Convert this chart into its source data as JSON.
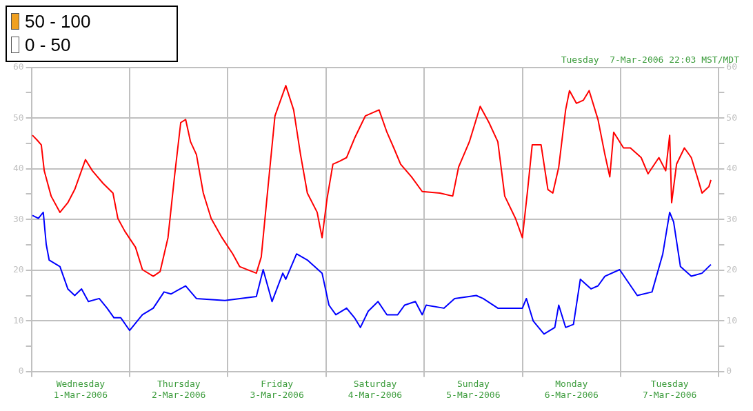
{
  "chart_data": {
    "type": "line",
    "title": "Tuesday  7-Mar-2006 22:03 MST/MDT",
    "annotations": [
      "50 - 100",
      "0 - 50"
    ],
    "xlim": [
      "2006-03-01",
      "2006-03-08"
    ],
    "xticks": [
      {
        "value": "2006-03-01",
        "label": null
      },
      {
        "value": "2006-03-01T12:00",
        "label": "Wednesday\n1-Mar-2006"
      },
      {
        "value": "2006-03-02",
        "label": null
      },
      {
        "value": "2006-03-02T12:00",
        "label": "Thursday\n2-Mar-2006"
      },
      {
        "value": "2006-03-03",
        "label": null
      },
      {
        "value": "2006-03-03T12:00",
        "label": "Friday\n3-Mar-2006"
      },
      {
        "value": "2006-03-04",
        "label": null
      },
      {
        "value": "2006-03-04T12:00",
        "label": "Saturday\n4-Mar-2006"
      },
      {
        "value": "2006-03-05",
        "label": null
      },
      {
        "value": "2006-03-05T12:00",
        "label": "Sunday\n5-Mar-2006"
      },
      {
        "value": "2006-03-06",
        "label": null
      },
      {
        "value": "2006-03-06T12:00",
        "label": "Monday\n6-Mar-2006"
      },
      {
        "value": "2006-03-07",
        "label": null
      },
      {
        "value": "2006-03-07T12:00",
        "label": "Tuesday\n7-Mar-2006"
      },
      {
        "value": "2006-03-08",
        "label": null
      }
    ],
    "ylim": [
      0,
      60
    ],
    "yticks": [
      0,
      {
        "value": 5,
        "label": null
      },
      10,
      {
        "value": 15,
        "label": null
      },
      20,
      {
        "value": 25,
        "label": null
      },
      30,
      {
        "value": 35,
        "label": null
      },
      40,
      {
        "value": 45,
        "label": null
      },
      50,
      {
        "value": 55,
        "label": null
      },
      60
    ],
    "y2lim": [
      0,
      60
    ],
    "y2ticks": [
      0,
      {
        "value": 5,
        "label": null
      },
      10,
      {
        "value": 15,
        "label": null
      },
      20,
      {
        "value": 25,
        "label": null
      },
      30,
      {
        "value": 35,
        "label": null
      },
      40,
      {
        "value": 45,
        "label": null
      },
      50,
      {
        "value": 55,
        "label": null
      },
      60
    ],
    "grid": true,
    "legend": false,
    "marker": "none",
    "line_style": "solid",
    "series": [
      {
        "color": "#ff0000",
        "x": [
          "2006-03-01T00:14",
          "2006-03-01T01:26",
          "2006-03-01T02:24",
          "2006-03-01T03:07",
          "2006-03-01T04:48",
          "2006-03-01T06:58",
          "2006-03-01T08:53",
          "2006-03-01T10:34",
          "2006-03-01T13:12",
          "2006-03-01T14:53",
          "2006-03-01T17:31",
          "2006-03-01T19:55",
          "2006-03-01T21:07",
          "2006-03-01T22:48",
          "2006-03-02T01:26",
          "2006-03-02T03:07",
          "2006-03-02T05:46",
          "2006-03-02T07:26",
          "2006-03-02T09:22",
          "2006-03-02T11:02",
          "2006-03-02T12:29",
          "2006-03-02T13:41",
          "2006-03-02T14:53",
          "2006-03-02T16:19",
          "2006-03-02T18:00",
          "2006-03-02T19:55",
          "2006-03-02T22:34",
          "2006-03-03T01:12",
          "2006-03-03T02:53",
          "2006-03-03T06:58",
          "2006-03-03T08:10",
          "2006-03-03T09:50",
          "2006-03-03T11:31",
          "2006-03-03T14:10",
          "2006-03-03T16:05",
          "2006-03-03T17:46",
          "2006-03-03T19:26",
          "2006-03-03T21:50",
          "2006-03-03T23:02",
          "2006-03-04T00:14",
          "2006-03-04T01:41",
          "2006-03-04T03:22",
          "2006-03-04T05:02",
          "2006-03-04T06:58",
          "2006-03-04T09:36",
          "2006-03-04T12:58",
          "2006-03-04T14:53",
          "2006-03-04T16:34",
          "2006-03-04T18:14",
          "2006-03-04T20:53",
          "2006-03-04T23:31",
          "2006-03-05T03:50",
          "2006-03-05T06:58",
          "2006-03-05T08:24",
          "2006-03-05T11:02",
          "2006-03-05T13:41",
          "2006-03-05T15:50",
          "2006-03-05T18:00",
          "2006-03-05T19:41",
          "2006-03-05T22:19",
          "2006-03-06T00:00",
          "2006-03-06T01:12",
          "2006-03-06T02:24",
          "2006-03-06T04:34",
          "2006-03-06T06:14",
          "2006-03-06T07:26",
          "2006-03-06T08:53",
          "2006-03-06T10:34",
          "2006-03-06T11:31",
          "2006-03-06T13:12",
          "2006-03-06T14:53",
          "2006-03-06T16:19",
          "2006-03-06T18:29",
          "2006-03-06T20:10",
          "2006-03-06T21:22",
          "2006-03-06T22:19",
          "2006-03-07T00:43",
          "2006-03-07T02:24",
          "2006-03-07T05:02",
          "2006-03-07T06:43",
          "2006-03-07T09:22",
          "2006-03-07T11:02",
          "2006-03-07T12:00",
          "2006-03-07T12:29",
          "2006-03-07T13:41",
          "2006-03-07T15:36",
          "2006-03-07T17:17",
          "2006-03-07T18:58",
          "2006-03-07T19:55",
          "2006-03-07T21:36",
          "2006-03-07T22:05"
        ],
        "values": [
          46.6,
          45.6,
          44.7,
          39.6,
          34.6,
          31.4,
          33.3,
          35.9,
          41.8,
          39.6,
          37.1,
          35.2,
          30.2,
          27.7,
          24.5,
          20.1,
          18.8,
          19.7,
          26.4,
          39,
          49.1,
          49.7,
          45.3,
          42.8,
          35.2,
          30.2,
          26.4,
          23.2,
          20.7,
          19.4,
          22.6,
          36.5,
          50.4,
          56.4,
          51.6,
          42.8,
          35.2,
          31.4,
          26.4,
          34,
          40.9,
          41.5,
          42.2,
          46,
          50.4,
          51.6,
          47.2,
          44.1,
          40.9,
          38.4,
          35.5,
          35.2,
          34.6,
          40.3,
          45.3,
          52.3,
          49.1,
          45.3,
          34.6,
          30.2,
          26.4,
          35.2,
          44.7,
          44.7,
          35.9,
          35.2,
          40.3,
          51.6,
          55.4,
          52.9,
          53.5,
          55.4,
          49.7,
          42.8,
          38.4,
          47.2,
          44.1,
          44.1,
          42.2,
          39,
          42.2,
          39.6,
          46.6,
          33.3,
          40.9,
          44.1,
          42.2,
          37.8,
          35.2,
          36.5,
          37.8
        ]
      },
      {
        "color": "#0000ff",
        "x": [
          "2006-03-01T00:14",
          "2006-03-01T01:41",
          "2006-03-01T02:53",
          "2006-03-01T03:36",
          "2006-03-01T04:19",
          "2006-03-01T06:58",
          "2006-03-01T08:53",
          "2006-03-01T10:34",
          "2006-03-01T12:14",
          "2006-03-01T13:55",
          "2006-03-01T16:34",
          "2006-03-01T18:29",
          "2006-03-01T20:10",
          "2006-03-01T21:50",
          "2006-03-02T00:00",
          "2006-03-02T03:07",
          "2006-03-02T05:46",
          "2006-03-02T08:24",
          "2006-03-02T10:05",
          "2006-03-02T13:41",
          "2006-03-02T16:19",
          "2006-03-02T23:17",
          "2006-03-03T06:58",
          "2006-03-03T08:38",
          "2006-03-03T10:48",
          "2006-03-03T13:26",
          "2006-03-03T14:10",
          "2006-03-03T16:48",
          "2006-03-03T19:26",
          "2006-03-03T23:02",
          "2006-03-04T00:43",
          "2006-03-04T02:24",
          "2006-03-04T05:02",
          "2006-03-04T06:58",
          "2006-03-04T08:24",
          "2006-03-04T10:19",
          "2006-03-04T12:43",
          "2006-03-04T14:53",
          "2006-03-04T17:31",
          "2006-03-04T19:12",
          "2006-03-04T21:50",
          "2006-03-04T23:31",
          "2006-03-05T00:29",
          "2006-03-05T04:48",
          "2006-03-05T07:26",
          "2006-03-05T12:43",
          "2006-03-05T14:24",
          "2006-03-05T18:00",
          "2006-03-06T00:00",
          "2006-03-06T00:58",
          "2006-03-06T02:38",
          "2006-03-06T05:17",
          "2006-03-06T07:55",
          "2006-03-06T08:53",
          "2006-03-06T10:34",
          "2006-03-06T12:29",
          "2006-03-06T14:10",
          "2006-03-06T16:48",
          "2006-03-06T18:29",
          "2006-03-06T20:10",
          "2006-03-06T23:46",
          "2006-03-07T04:05",
          "2006-03-07T07:41",
          "2006-03-07T10:19",
          "2006-03-07T12:00",
          "2006-03-07T12:58",
          "2006-03-07T14:38",
          "2006-03-07T17:17",
          "2006-03-07T19:55",
          "2006-03-07T22:05"
        ],
        "values": [
          30.8,
          30.2,
          31.4,
          25.1,
          22,
          20.7,
          16.3,
          15,
          16.3,
          13.8,
          14.4,
          12.5,
          10.6,
          10.6,
          8.1,
          11.2,
          12.5,
          15.7,
          15.3,
          16.9,
          14.4,
          14,
          14.8,
          20.1,
          13.8,
          19.4,
          18.2,
          23.2,
          22,
          19.4,
          13.1,
          11.2,
          12.5,
          10.6,
          8.7,
          11.9,
          13.8,
          11.2,
          11.2,
          13.1,
          13.8,
          11.2,
          13.1,
          12.5,
          14.4,
          15,
          14.4,
          12.5,
          12.5,
          14.4,
          10,
          7.4,
          8.7,
          13.1,
          8.7,
          9.3,
          18.2,
          16.3,
          16.9,
          18.8,
          20.1,
          15,
          15.7,
          23.2,
          31.4,
          29.5,
          20.7,
          18.8,
          19.4,
          21.1
        ]
      }
    ]
  }
}
